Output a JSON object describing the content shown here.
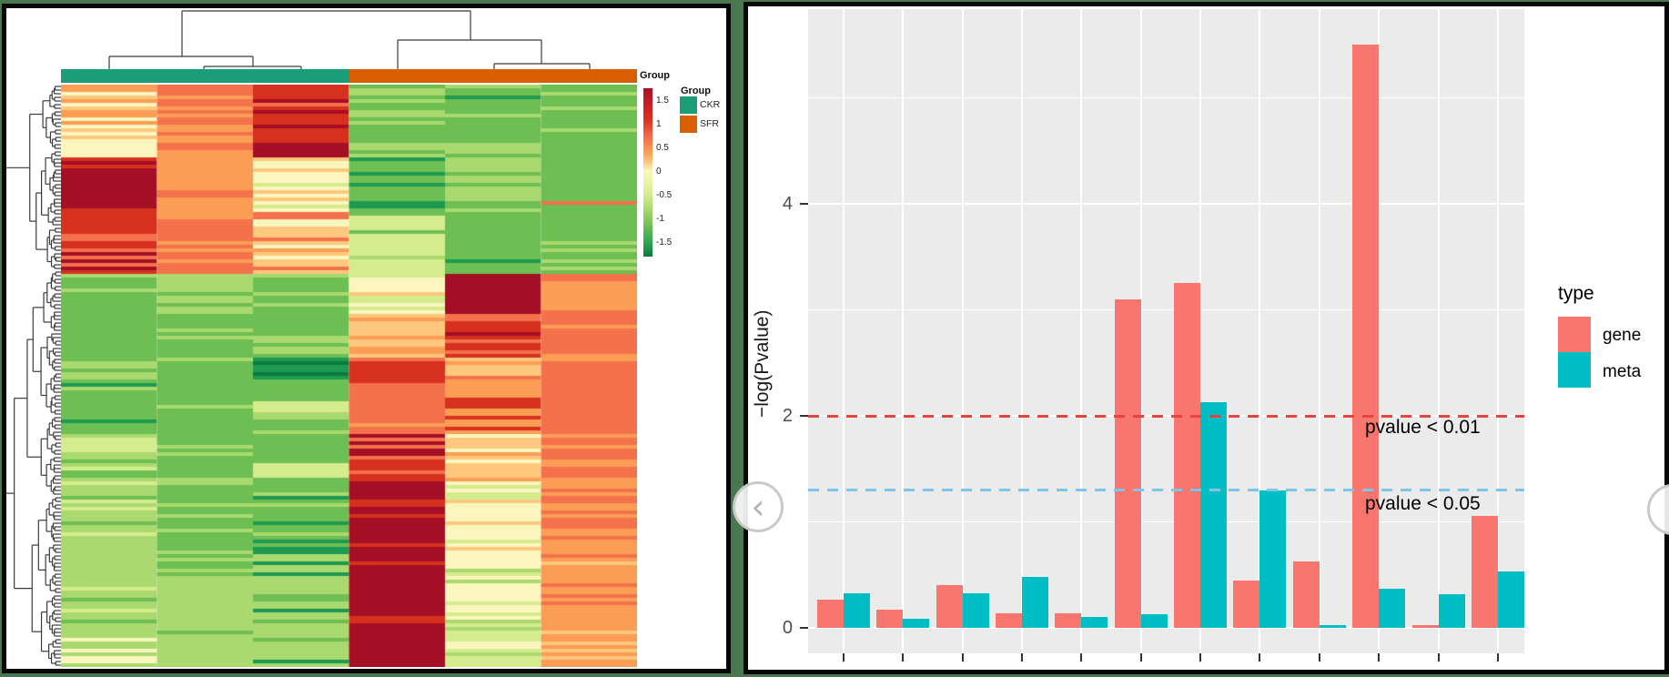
{
  "palette": {
    "DR": "#A50F25",
    "RD": "#D7301F",
    "OR": "#F4714B",
    "O": "#FB9D55",
    "LO": "#FDC87E",
    "CR": "#FBF6BD",
    "PG": "#D4EC8E",
    "LG": "#A9D96F",
    "GR": "#6DBE53",
    "DG": "#1D9A50",
    "EG": "#0B7A3D"
  },
  "chart_data": [
    {
      "type": "heatmap",
      "annotation_label": "Group",
      "column_groups": [
        {
          "name": "CKR",
          "color": "#1B9E77",
          "n_columns": 3
        },
        {
          "name": "SFR",
          "color": "#D95F02",
          "n_columns": 3
        }
      ],
      "group_legend": {
        "title": "Group",
        "items": [
          {
            "label": "CKR",
            "color": "#1B9E77"
          },
          {
            "label": "SFR",
            "color": "#D95F02"
          }
        ]
      },
      "colorbar": {
        "ticks": [
          "1.5",
          "1",
          "0.5",
          "0",
          "-0.5",
          "-1",
          "-1.5"
        ],
        "stops": [
          {
            "offset": "0%",
            "color": "#A50F25"
          },
          {
            "offset": "8%",
            "color": "#C51B28"
          },
          {
            "offset": "18%",
            "color": "#D7301F"
          },
          {
            "offset": "30%",
            "color": "#F4714B"
          },
          {
            "offset": "38%",
            "color": "#FB9D55"
          },
          {
            "offset": "44%",
            "color": "#FDC87E"
          },
          {
            "offset": "49%",
            "color": "#FBF6BD"
          },
          {
            "offset": "56%",
            "color": "#E9F5A2"
          },
          {
            "offset": "63%",
            "color": "#D4EC8E"
          },
          {
            "offset": "72%",
            "color": "#A9D96F"
          },
          {
            "offset": "82%",
            "color": "#6DBE53"
          },
          {
            "offset": "92%",
            "color": "#2FA354"
          },
          {
            "offset": "100%",
            "color": "#0B7A3D"
          }
        ]
      },
      "n_columns": 6,
      "rows_per_block": [
        11,
        9,
        15,
        17,
        11,
        12,
        6,
        15,
        13,
        21,
        22,
        8
      ],
      "blocks": [
        {
          "cols": [
            {
              "b": "O",
              "s": [
                "LO",
                "CR"
              ],
              "f": 0.3
            },
            {
              "b": "OR",
              "s": [
                "O"
              ],
              "f": 0.2
            },
            {
              "b": "RD",
              "s": [
                "DR",
                "OR"
              ],
              "f": 0.4
            },
            {
              "b": "GR",
              "s": [
                "LG"
              ],
              "f": 0.3
            },
            {
              "b": "GR",
              "s": [
                "DG",
                "LG"
              ],
              "f": 0.4
            },
            {
              "b": "GR",
              "s": [
                "LG"
              ],
              "f": 0.2
            }
          ]
        },
        {
          "cols": [
            {
              "b": "CR",
              "s": [
                "PG",
                "LG",
                "LO"
              ],
              "f": 0.5
            },
            {
              "b": "O",
              "s": [
                "OR"
              ],
              "f": 0.3
            },
            {
              "b": "DR",
              "s": [
                "RD"
              ],
              "f": 0.3
            },
            {
              "b": "GR",
              "s": [
                "LG",
                "DG"
              ],
              "f": 0.3
            },
            {
              "b": "LG",
              "s": [
                "GR"
              ],
              "f": 0.3
            },
            {
              "b": "GR",
              "s": [
                "LG"
              ],
              "f": 0.2
            }
          ]
        },
        {
          "cols": [
            {
              "b": "DR",
              "s": [
                "RD"
              ],
              "f": 0.25
            },
            {
              "b": "O",
              "s": [
                "OR"
              ],
              "f": 0.3
            },
            {
              "b": "CR",
              "s": [
                "LO",
                "PG"
              ],
              "f": 0.4
            },
            {
              "b": "GR",
              "s": [
                "DG",
                "LG"
              ],
              "f": 0.35
            },
            {
              "b": "LG",
              "s": [
                "GR"
              ],
              "f": 0.25
            },
            {
              "b": "GR",
              "s": [
                "OR"
              ],
              "f": 0.08
            }
          ]
        },
        {
          "cols": [
            {
              "b": "RD",
              "s": [
                "OR",
                "DR"
              ],
              "f": 0.5
            },
            {
              "b": "OR",
              "s": [
                "O"
              ],
              "f": 0.2
            },
            {
              "b": "LO",
              "s": [
                "OR",
                "CR",
                "O"
              ],
              "f": 0.5
            },
            {
              "b": "PG",
              "s": [
                "LG",
                "GR"
              ],
              "f": 0.4
            },
            {
              "b": "GR",
              "s": [
                "DG"
              ],
              "f": 0.2
            },
            {
              "b": "GR",
              "s": [
                "LG"
              ],
              "f": 0.15
            }
          ]
        },
        {
          "cols": [
            {
              "b": "GR",
              "s": [
                "LG"
              ],
              "f": 0.25
            },
            {
              "b": "LG",
              "s": [
                "GR"
              ],
              "f": 0.2
            },
            {
              "b": "LG",
              "s": [
                "GR"
              ],
              "f": 0.3
            },
            {
              "b": "CR",
              "s": [
                "LO",
                "PG"
              ],
              "f": 0.45
            },
            {
              "b": "DR",
              "s": [
                "RD"
              ],
              "f": 0.15
            },
            {
              "b": "O",
              "s": [
                "OR"
              ],
              "f": 0.25
            }
          ]
        },
        {
          "cols": [
            {
              "b": "GR",
              "s": [
                "DG",
                "LG"
              ],
              "f": 0.35
            },
            {
              "b": "GR",
              "s": [
                "LG"
              ],
              "f": 0.2
            },
            {
              "b": "GR",
              "s": [
                "PG",
                "LG"
              ],
              "f": 0.4
            },
            {
              "b": "LO",
              "s": [
                "CR",
                "O"
              ],
              "f": 0.5
            },
            {
              "b": "RD",
              "s": [
                "DR",
                "OR"
              ],
              "f": 0.3
            },
            {
              "b": "OR",
              "s": [
                "O"
              ],
              "f": 0.3
            }
          ]
        },
        {
          "cols": [
            {
              "b": "LG",
              "s": [
                "GR"
              ],
              "f": 0.3
            },
            {
              "b": "GR",
              "s": [
                "LG"
              ],
              "f": 0.2
            },
            {
              "b": "DG",
              "s": [
                "GR",
                "EG"
              ],
              "f": 0.4
            },
            {
              "b": "RD",
              "s": [
                "OR"
              ],
              "f": 0.2
            },
            {
              "b": "LO",
              "s": [
                "OR",
                "O"
              ],
              "f": 0.4
            },
            {
              "b": "OR",
              "s": [
                "O"
              ],
              "f": 0.2
            }
          ]
        },
        {
          "cols": [
            {
              "b": "GR",
              "s": [
                "LG",
                "DG"
              ],
              "f": 0.35
            },
            {
              "b": "GR",
              "s": [
                "LG"
              ],
              "f": 0.15
            },
            {
              "b": "GR",
              "s": [
                "PG",
                "LG"
              ],
              "f": 0.35
            },
            {
              "b": "OR",
              "s": [
                "O",
                "RD"
              ],
              "f": 0.3
            },
            {
              "b": "O",
              "s": [
                "RD",
                "LO"
              ],
              "f": 0.4
            },
            {
              "b": "OR",
              "s": [
                "O"
              ],
              "f": 0.25
            }
          ]
        },
        {
          "cols": [
            {
              "b": "LG",
              "s": [
                "GR",
                "PG"
              ],
              "f": 0.4
            },
            {
              "b": "GR",
              "s": [
                "LG"
              ],
              "f": 0.2
            },
            {
              "b": "GR",
              "s": [
                "PG"
              ],
              "f": 0.25
            },
            {
              "b": "RD",
              "s": [
                "DR",
                "OR"
              ],
              "f": 0.4
            },
            {
              "b": "LO",
              "s": [
                "CR",
                "O"
              ],
              "f": 0.5
            },
            {
              "b": "OR",
              "s": [
                "O"
              ],
              "f": 0.3
            }
          ]
        },
        {
          "cols": [
            {
              "b": "LG",
              "s": [
                "GR",
                "PG"
              ],
              "f": 0.35
            },
            {
              "b": "GR",
              "s": [
                "LG"
              ],
              "f": 0.3
            },
            {
              "b": "GR",
              "s": [
                "DG",
                "LG"
              ],
              "f": 0.3
            },
            {
              "b": "DR",
              "s": [
                "RD"
              ],
              "f": 0.35
            },
            {
              "b": "CR",
              "s": [
                "LO",
                "PG"
              ],
              "f": 0.5
            },
            {
              "b": "O",
              "s": [
                "OR"
              ],
              "f": 0.4
            }
          ]
        },
        {
          "cols": [
            {
              "b": "LG",
              "s": [
                "PG",
                "GR"
              ],
              "f": 0.25
            },
            {
              "b": "LG",
              "s": [
                "GR"
              ],
              "f": 0.2
            },
            {
              "b": "LG",
              "s": [
                "GR",
                "DG"
              ],
              "f": 0.3
            },
            {
              "b": "DR",
              "s": [
                "RD"
              ],
              "f": 0.1
            },
            {
              "b": "CR",
              "s": [
                "PG",
                "LG"
              ],
              "f": 0.45
            },
            {
              "b": "O",
              "s": [
                "LO",
                "OR"
              ],
              "f": 0.3
            }
          ]
        },
        {
          "cols": [
            {
              "b": "LG",
              "s": [
                "CR",
                "GR"
              ],
              "f": 0.3
            },
            {
              "b": "LG",
              "s": [
                "GR"
              ],
              "f": 0.15
            },
            {
              "b": "LG",
              "s": [
                "GR",
                "DG"
              ],
              "f": 0.35
            },
            {
              "b": "DR",
              "s": [],
              "f": 0
            },
            {
              "b": "PG",
              "s": [
                "LG",
                "CR"
              ],
              "f": 0.4
            },
            {
              "b": "O",
              "s": [
                "LO"
              ],
              "f": 0.2
            }
          ]
        }
      ]
    },
    {
      "type": "bar",
      "ylabel": "−log(Pvalue)",
      "yticks": [
        "0",
        "2",
        "4"
      ],
      "ytick_values": [
        0,
        2,
        4
      ],
      "n_groups": 12,
      "x_tick_labels": [
        "",
        "",
        "",
        "",
        "",
        "",
        "",
        "",
        "",
        "",
        "",
        ""
      ],
      "series": [
        {
          "name": "gene",
          "color": "#F8766D",
          "values": [
            0.27,
            0.17,
            0.4,
            0.14,
            0.14,
            3.1,
            3.25,
            0.45,
            0.63,
            5.5,
            0.03,
            1.06
          ]
        },
        {
          "name": "meta",
          "color": "#00BFC4",
          "values": [
            0.33,
            0.09,
            0.33,
            0.48,
            0.1,
            0.13,
            2.13,
            1.3,
            0.03,
            0.37,
            0.32,
            0.53
          ]
        }
      ],
      "reference_lines": [
        {
          "value": 2.0,
          "label": "pvalue < 0.01",
          "color": "#E8443C"
        },
        {
          "value": 1.3,
          "label": "pvalue < 0.05",
          "color": "#81C4EA"
        }
      ],
      "legend_title": "type",
      "legend_position": "right",
      "panel_background": "#EBEBEB",
      "grid": "white major and minor",
      "ylim": [
        0,
        5.8
      ]
    }
  ],
  "carousel": {
    "prev_glyph": "‹",
    "next_glyph": "›"
  }
}
